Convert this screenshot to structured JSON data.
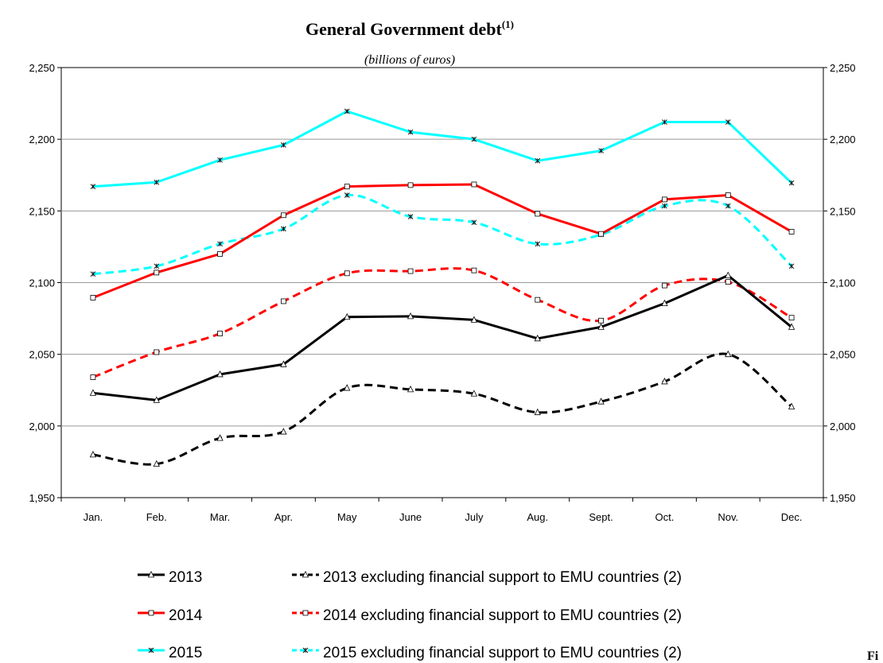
{
  "chart_data": {
    "type": "line",
    "title": "General Government debt",
    "title_superscript": "(1)",
    "subtitle": "(billions of euros)",
    "xlabel": "",
    "ylabel": "",
    "categories": [
      "Jan.",
      "Feb.",
      "Mar.",
      "Apr.",
      "May",
      "June",
      "July",
      "Aug.",
      "Sept.",
      "Oct.",
      "Nov.",
      "Dec."
    ],
    "ylim": [
      1950,
      2250
    ],
    "yticks": [
      1950,
      2000,
      2050,
      2100,
      2150,
      2200,
      2250
    ],
    "ytick_labels": [
      "1,950",
      "2,000",
      "2,050",
      "2,100",
      "2,150",
      "2,200",
      "2,250"
    ],
    "grid": true,
    "secondary_y_axis": "mirrors left axis",
    "legend_position": "bottom",
    "series": [
      {
        "name": "2013",
        "color": "#000000",
        "dash": "solid",
        "marker": "triangle",
        "values": [
          2023,
          2018,
          2036,
          2043,
          2076,
          2076.5,
          2074,
          2061,
          2069,
          2085.5,
          2105,
          2069
        ]
      },
      {
        "name": "2013 excluding financial support to EMU countries (2)",
        "color": "#000000",
        "dash": "dashed",
        "marker": "triangle",
        "values": [
          1980,
          1973.5,
          1991.5,
          1996,
          2026.5,
          2025.5,
          2022.5,
          2009.5,
          2017,
          2031,
          2050,
          2013.5
        ]
      },
      {
        "name": "2014",
        "color": "#ff0000",
        "dash": "solid",
        "marker": "square",
        "values": [
          2089.5,
          2107,
          2120,
          2147,
          2167,
          2168,
          2168.5,
          2148,
          2134,
          2158,
          2161,
          2135.5
        ]
      },
      {
        "name": "2014 excluding financial support to EMU countries (2)",
        "color": "#ff0000",
        "dash": "dashed",
        "marker": "square",
        "values": [
          2034,
          2051.5,
          2064.5,
          2087,
          2106.5,
          2108,
          2108.5,
          2088,
          2073.5,
          2098,
          2100.5,
          2075.5
        ]
      },
      {
        "name": "2015",
        "color": "#00ffff",
        "dash": "solid",
        "marker": "star",
        "values": [
          2167,
          2170,
          2185.5,
          2196,
          2219.5,
          2205,
          2200,
          2185,
          2192,
          2212,
          2212,
          2169.5
        ]
      },
      {
        "name": "2015 excluding financial support to EMU countries (2)",
        "color": "#00ffff",
        "dash": "dashed",
        "marker": "star",
        "values": [
          2106,
          2111.5,
          2127,
          2137.5,
          2161,
          2146,
          2142,
          2127,
          2133.5,
          2153.5,
          2153.5,
          2111.5
        ]
      }
    ],
    "legend": {
      "left_column": [
        "2013",
        "2014",
        "2015"
      ],
      "right_column": [
        "2013 excluding financial support to EMU countries (2)",
        "2014 excluding financial support to EMU countries (2)",
        "2015 excluding financial support to EMU countries (2)"
      ]
    },
    "corner_text": "Fi"
  }
}
